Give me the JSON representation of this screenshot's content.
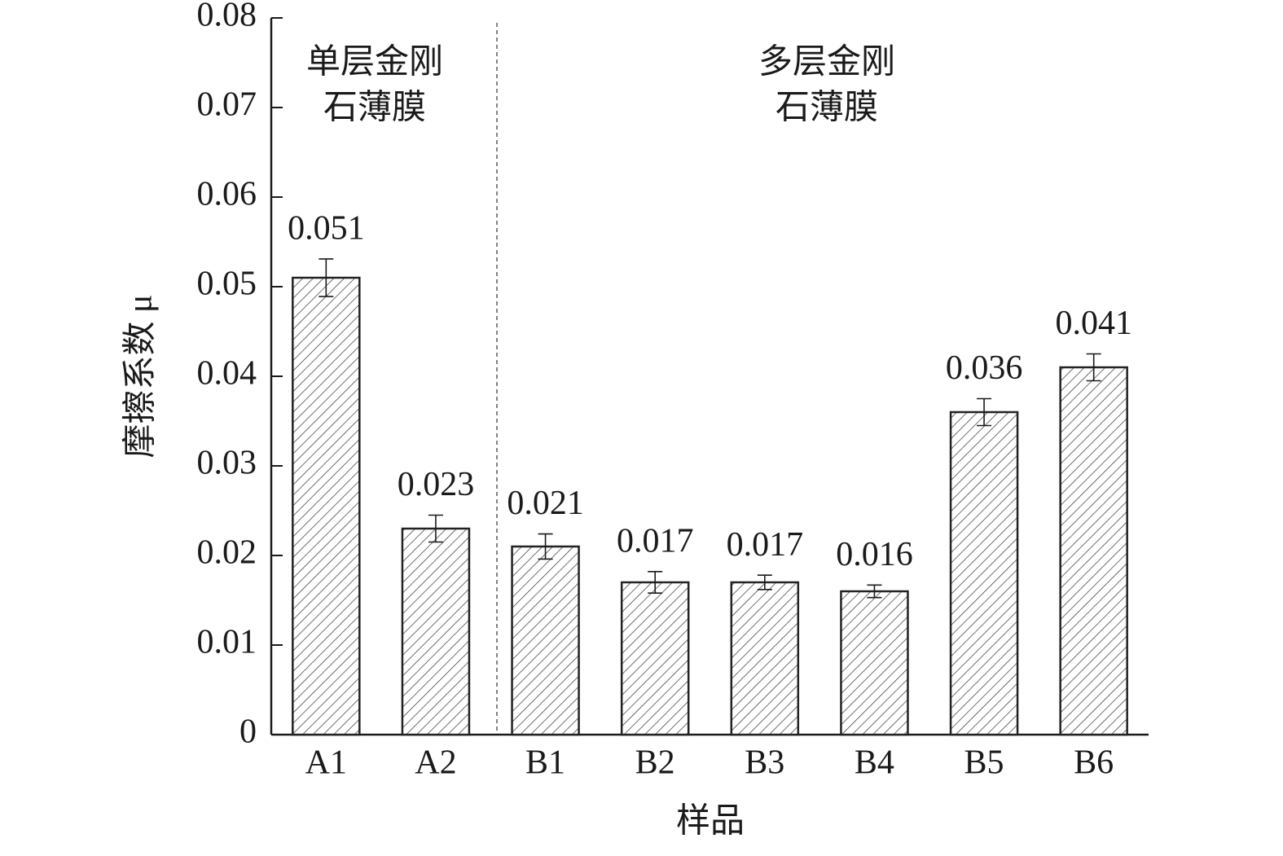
{
  "chart_data": {
    "type": "bar",
    "y_label": "摩擦系数 μ",
    "x_label": "样品",
    "categories": [
      "A1",
      "A2",
      "B1",
      "B2",
      "B3",
      "B4",
      "B5",
      "B6"
    ],
    "values": [
      0.051,
      0.023,
      0.021,
      0.017,
      0.017,
      0.016,
      0.036,
      0.041
    ],
    "errors": [
      0.0021,
      0.0015,
      0.0014,
      0.0012,
      0.0008,
      0.0007,
      0.0015,
      0.0015
    ],
    "color": "#222222",
    "ylim": [
      0,
      0.08
    ],
    "yticks": [
      0,
      0.01,
      0.02,
      0.03,
      0.04,
      0.05,
      0.06,
      0.07,
      0.08
    ],
    "annotations": [
      {
        "lines": [
          "单层金刚",
          "石薄膜"
        ]
      },
      {
        "lines": [
          "多层金刚",
          "石薄膜"
        ]
      }
    ]
  }
}
